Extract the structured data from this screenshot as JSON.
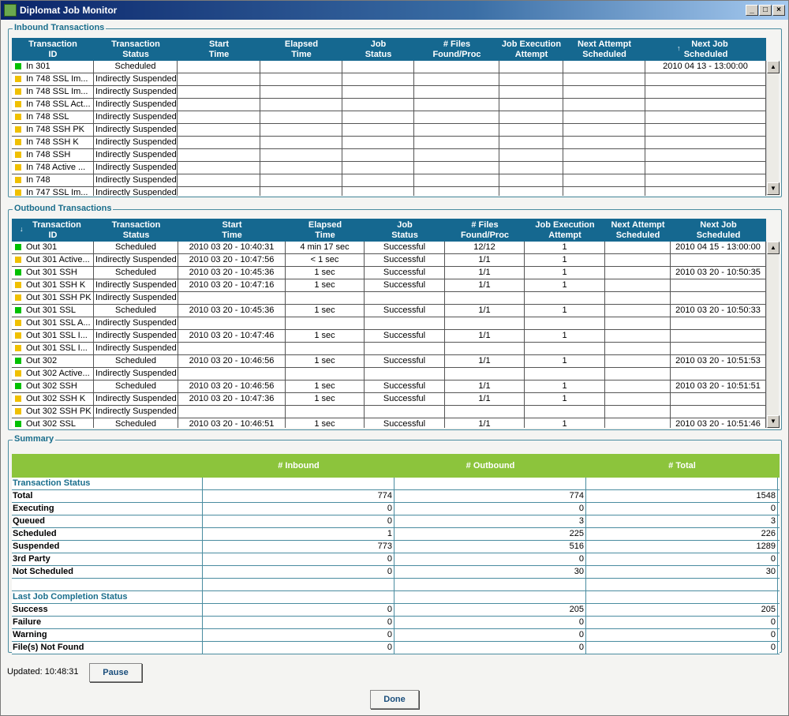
{
  "window": {
    "title": "Diplomat Job Monitor"
  },
  "inbound": {
    "legend": "Inbound Transactions",
    "headers": [
      [
        "Transaction",
        "ID"
      ],
      [
        "Transaction",
        "Status"
      ],
      [
        "Start",
        "Time"
      ],
      [
        "Elapsed",
        "Time"
      ],
      [
        "Job",
        "Status"
      ],
      [
        "# Files",
        "Found/Proc"
      ],
      [
        "Job Execution",
        "Attempt"
      ],
      [
        "Next Attempt",
        "Scheduled"
      ],
      [
        "Next Job",
        "Scheduled"
      ]
    ],
    "rows": [
      {
        "indicator": "#00c000",
        "id": "In 301",
        "status": "Scheduled",
        "next_job": "2010 04 13 - 13:00:00"
      },
      {
        "indicator": "#f0c000",
        "id": "In 748 SSL Im...",
        "status": "Indirectly Suspended"
      },
      {
        "indicator": "#f0c000",
        "id": "In 748 SSL Im...",
        "status": "Indirectly Suspended"
      },
      {
        "indicator": "#f0c000",
        "id": "In 748 SSL Act...",
        "status": "Indirectly Suspended"
      },
      {
        "indicator": "#f0c000",
        "id": "In 748 SSL",
        "status": "Indirectly Suspended"
      },
      {
        "indicator": "#f0c000",
        "id": "In 748 SSH PK",
        "status": "Indirectly Suspended"
      },
      {
        "indicator": "#f0c000",
        "id": "In 748 SSH K",
        "status": "Indirectly Suspended"
      },
      {
        "indicator": "#f0c000",
        "id": "In 748 SSH",
        "status": "Indirectly Suspended"
      },
      {
        "indicator": "#f0c000",
        "id": "In 748 Active ...",
        "status": "Indirectly Suspended"
      },
      {
        "indicator": "#f0c000",
        "id": "In 748",
        "status": "Indirectly Suspended"
      },
      {
        "indicator": "#f0c000",
        "id": "In 747 SSL Im...",
        "status": "Indirectly Suspended"
      }
    ]
  },
  "outbound": {
    "legend": "Outbound Transactions",
    "headers": [
      [
        "Transaction",
        "ID"
      ],
      [
        "Transaction",
        "Status"
      ],
      [
        "Start",
        "Time"
      ],
      [
        "Elapsed",
        "Time"
      ],
      [
        "Job",
        "Status"
      ],
      [
        "# Files",
        "Found/Proc"
      ],
      [
        "Job Execution",
        "Attempt"
      ],
      [
        "Next Attempt",
        "Scheduled"
      ],
      [
        "Next Job",
        "Scheduled"
      ]
    ],
    "rows": [
      {
        "indicator": "#00c000",
        "id": "Out 301",
        "status": "Scheduled",
        "start": "2010 03 20 - 10:40:31",
        "elapsed": "4 min 17 sec",
        "job_status": "Successful",
        "files": "12/12",
        "attempt": 1,
        "next_job": "2010 04 15 - 13:00:00"
      },
      {
        "indicator": "#f0c000",
        "id": "Out 301 Active...",
        "status": "Indirectly Suspended",
        "start": "2010 03 20 - 10:47:56",
        "elapsed": "< 1 sec",
        "job_status": "Successful",
        "files": "1/1",
        "attempt": 1
      },
      {
        "indicator": "#00c000",
        "id": "Out 301 SSH",
        "status": "Scheduled",
        "start": "2010 03 20 - 10:45:36",
        "elapsed": "1 sec",
        "job_status": "Successful",
        "files": "1/1",
        "attempt": 1,
        "next_job": "2010 03 20 - 10:50:35"
      },
      {
        "indicator": "#f0c000",
        "id": "Out 301 SSH K",
        "status": "Indirectly Suspended",
        "start": "2010 03 20 - 10:47:16",
        "elapsed": "1 sec",
        "job_status": "Successful",
        "files": "1/1",
        "attempt": 1
      },
      {
        "indicator": "#f0c000",
        "id": "Out 301 SSH PK",
        "status": "Indirectly Suspended"
      },
      {
        "indicator": "#00c000",
        "id": "Out 301 SSL",
        "status": "Scheduled",
        "start": "2010 03 20 - 10:45:36",
        "elapsed": "1 sec",
        "job_status": "Successful",
        "files": "1/1",
        "attempt": 1,
        "next_job": "2010 03 20 - 10:50:33"
      },
      {
        "indicator": "#f0c000",
        "id": "Out 301 SSL A...",
        "status": "Indirectly Suspended"
      },
      {
        "indicator": "#f0c000",
        "id": "Out 301 SSL I...",
        "status": "Indirectly Suspended",
        "start": "2010 03 20 - 10:47:46",
        "elapsed": "1 sec",
        "job_status": "Successful",
        "files": "1/1",
        "attempt": 1
      },
      {
        "indicator": "#f0c000",
        "id": "Out 301 SSL I...",
        "status": "Indirectly Suspended"
      },
      {
        "indicator": "#00c000",
        "id": "Out 302",
        "status": "Scheduled",
        "start": "2010 03 20 - 10:46:56",
        "elapsed": "1 sec",
        "job_status": "Successful",
        "files": "1/1",
        "attempt": 1,
        "next_job": "2010 03 20 - 10:51:53"
      },
      {
        "indicator": "#f0c000",
        "id": "Out 302 Active...",
        "status": "Indirectly Suspended"
      },
      {
        "indicator": "#00c000",
        "id": "Out 302 SSH",
        "status": "Scheduled",
        "start": "2010 03 20 - 10:46:56",
        "elapsed": "1 sec",
        "job_status": "Successful",
        "files": "1/1",
        "attempt": 1,
        "next_job": "2010 03 20 - 10:51:51"
      },
      {
        "indicator": "#f0c000",
        "id": "Out 302 SSH K",
        "status": "Indirectly Suspended",
        "start": "2010 03 20 - 10:47:36",
        "elapsed": "1 sec",
        "job_status": "Successful",
        "files": "1/1",
        "attempt": 1
      },
      {
        "indicator": "#f0c000",
        "id": "Out 302 SSH PK",
        "status": "Indirectly Suspended"
      },
      {
        "indicator": "#00c000",
        "id": "Out 302 SSL",
        "status": "Scheduled",
        "start": "2010 03 20 - 10:46:51",
        "elapsed": "1 sec",
        "job_status": "Successful",
        "files": "1/1",
        "attempt": 1,
        "next_job": "2010 03 20 - 10:51:46"
      }
    ]
  },
  "summary": {
    "legend": "Summary",
    "headers": [
      "# Inbound",
      "# Outbound",
      "# Total"
    ],
    "sections": [
      {
        "title": "Transaction Status",
        "rows": [
          {
            "label": "Total",
            "values": [
              774,
              774,
              1548
            ]
          },
          {
            "label": "Executing",
            "values": [
              0,
              0,
              0
            ]
          },
          {
            "label": "Queued",
            "values": [
              0,
              3,
              3
            ]
          },
          {
            "label": "Scheduled",
            "values": [
              1,
              225,
              226
            ]
          },
          {
            "label": "Suspended",
            "values": [
              773,
              516,
              1289
            ]
          },
          {
            "label": "3rd Party",
            "values": [
              0,
              0,
              0
            ]
          },
          {
            "label": "Not Scheduled",
            "values": [
              0,
              30,
              30
            ]
          }
        ]
      },
      {
        "title": "Last Job Completion Status",
        "rows": [
          {
            "label": "Success",
            "values": [
              0,
              205,
              205
            ]
          },
          {
            "label": "Failure",
            "values": [
              0,
              0,
              0
            ]
          },
          {
            "label": "Warning",
            "values": [
              0,
              0,
              0
            ]
          },
          {
            "label": "File(s) Not Found",
            "values": [
              0,
              0,
              0
            ]
          }
        ]
      }
    ]
  },
  "footer": {
    "updated": "Updated: 10:48:31",
    "pause": "Pause",
    "done": "Done"
  }
}
